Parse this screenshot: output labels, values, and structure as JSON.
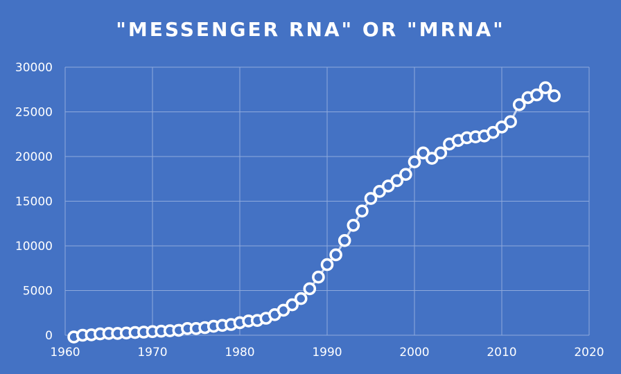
{
  "chart_data": {
    "type": "scatter",
    "title": "\"MESSENGER RNA\" OR \"MRNA\"",
    "xlabel": "",
    "ylabel": "",
    "xlim": [
      1960,
      2020
    ],
    "ylim": [
      0,
      30000
    ],
    "x_ticks": [
      "1960",
      "1970",
      "1980",
      "1990",
      "2000",
      "2010",
      "2020"
    ],
    "y_ticks": [
      "0",
      "5000",
      "10000",
      "15000",
      "20000",
      "25000",
      "30000"
    ],
    "grid": true,
    "colors": {
      "background": "#4472c4",
      "marker_edge": "#ffffff",
      "grid": "#8faadc",
      "line": "#c9d6ee"
    },
    "series": [
      {
        "x": [
          1961,
          1962,
          1963,
          1964,
          1965,
          1966,
          1967,
          1968,
          1969,
          1970,
          1971,
          1972,
          1973,
          1974,
          1975,
          1976,
          1977,
          1978,
          1979,
          1980,
          1981,
          1982,
          1983,
          1984,
          1985,
          1986,
          1987,
          1988,
          1989,
          1990,
          1991,
          1992,
          1993,
          1994,
          1995,
          1996,
          1997,
          1998,
          1999,
          2000,
          2001,
          2002,
          2003,
          2004,
          2005,
          2006,
          2007,
          2008,
          2009,
          2010,
          2011,
          2012,
          2013,
          2014,
          2015,
          2016
        ],
        "y": [
          -200,
          0,
          50,
          150,
          200,
          200,
          250,
          300,
          350,
          400,
          450,
          500,
          550,
          750,
          750,
          850,
          1000,
          1100,
          1200,
          1400,
          1600,
          1650,
          1900,
          2300,
          2800,
          3400,
          4100,
          5200,
          6500,
          7900,
          9000,
          10600,
          12300,
          13900,
          15300,
          16100,
          16700,
          17300,
          18000,
          19400,
          20400,
          19800,
          20400,
          21400,
          21800,
          22100,
          22200,
          22300,
          22700,
          23300,
          23900,
          25800,
          26600,
          26900,
          27700,
          26800
        ]
      }
    ]
  }
}
